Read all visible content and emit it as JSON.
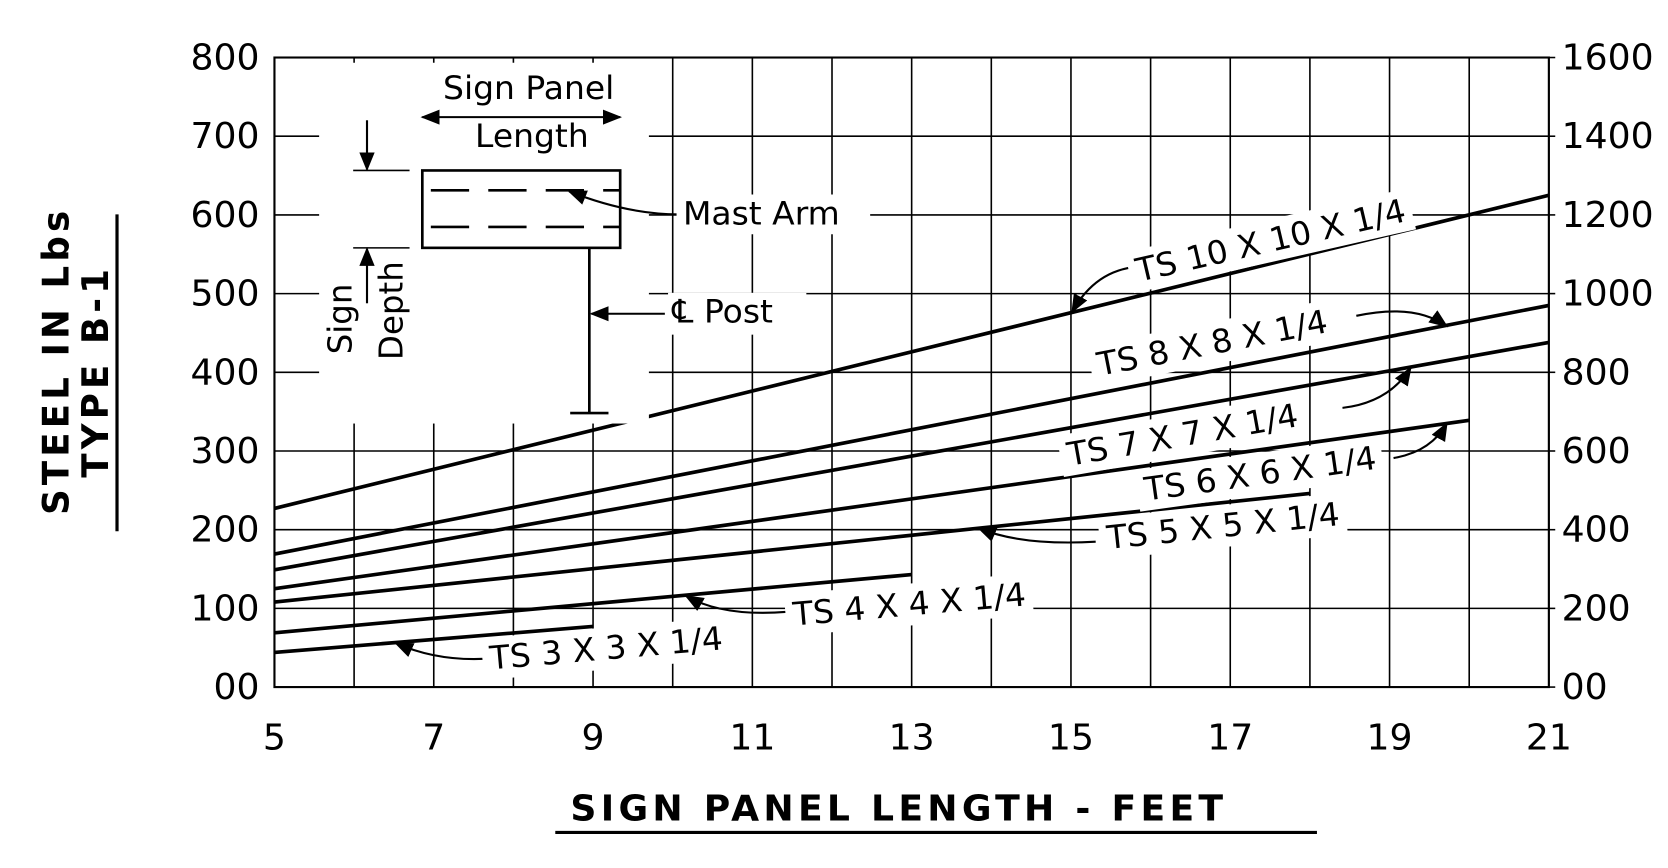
{
  "chart_data": {
    "type": "line",
    "ylabel": [
      "STEEL IN Lbs",
      "TYPE B-1"
    ],
    "xlabel": "SIGN PANEL LENGTH - FEET",
    "xlim": [
      5,
      21
    ],
    "xticks": [
      5,
      7,
      9,
      11,
      13,
      15,
      17,
      19,
      21
    ],
    "xgrid": [
      5,
      6,
      7,
      8,
      9,
      10,
      11,
      12,
      13,
      14,
      15,
      16,
      17,
      18,
      19,
      20,
      21
    ],
    "ylim": [
      0,
      800
    ],
    "yticks": [
      {
        "value": 0,
        "label": "00"
      },
      100,
      200,
      300,
      400,
      500,
      600,
      700,
      800
    ],
    "y2lim": [
      0,
      1600
    ],
    "y2ticks": [
      {
        "value": 0,
        "label": "00"
      },
      200,
      400,
      600,
      800,
      1000,
      1200,
      1400,
      1600
    ],
    "grid": true,
    "series": [
      {
        "name": "TS 10 X 10 X 1/4",
        "color": "#000000",
        "x": [
          5,
          21
        ],
        "values": [
          227,
          625
        ]
      },
      {
        "name": "TS 8 X 8 X 1/4",
        "color": "#000000",
        "x": [
          5,
          21
        ],
        "values": [
          169,
          485
        ]
      },
      {
        "name": "TS 7 X 7 X 1/4",
        "color": "#000000",
        "x": [
          5,
          21
        ],
        "values": [
          149,
          438
        ]
      },
      {
        "name": "TS 6 X 6 X 1/4",
        "color": "#000000",
        "x": [
          5,
          20
        ],
        "values": [
          125,
          339
        ]
      },
      {
        "name": "TS 5 X 5 X 1/4",
        "color": "#000000",
        "x": [
          5,
          18
        ],
        "values": [
          108,
          246
        ]
      },
      {
        "name": "TS 4 X 4 X 1/4",
        "color": "#000000",
        "x": [
          5,
          13
        ],
        "values": [
          69,
          143
        ]
      },
      {
        "name": "TS 3 X 3 X 1/4",
        "color": "#000000",
        "x": [
          5,
          9
        ],
        "values": [
          44,
          77
        ]
      }
    ],
    "diagram": {
      "panel_top": "Sign Panel",
      "panel_bottom": "Length",
      "mast_arm": "Mast Arm",
      "post": "℄ Post",
      "depth_top": "Sign",
      "depth_bottom": "Depth"
    }
  }
}
